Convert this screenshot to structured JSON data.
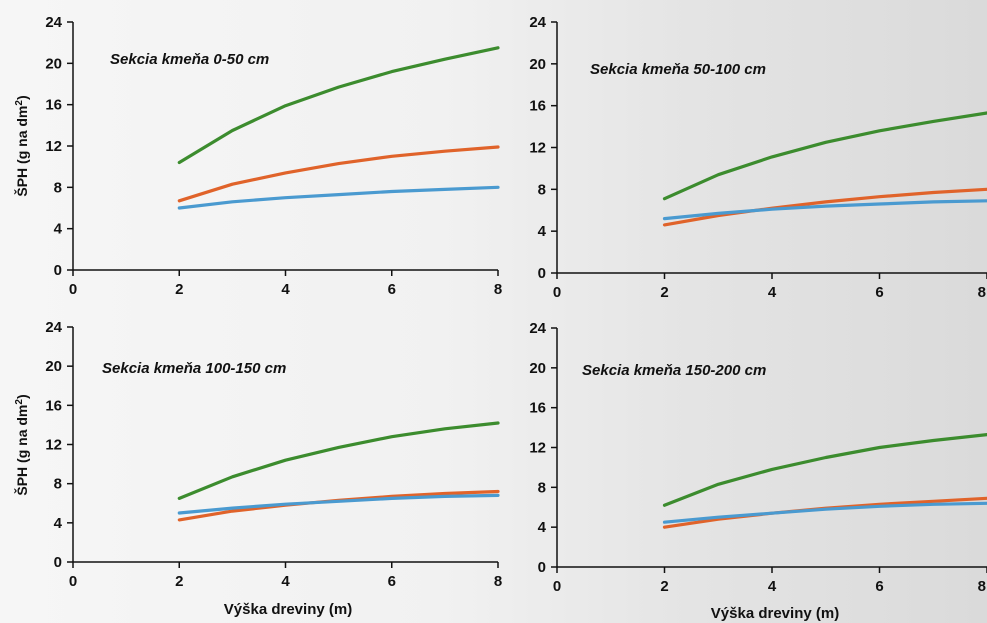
{
  "figure": {
    "xlabel": "Výška dreviny (m)",
    "ylabel_main": "ŠPH (g na dm",
    "ylabel_sup": "2",
    "ylabel_end": ")"
  },
  "colors": {
    "green": "#3c8c2e",
    "orange": "#e0632a",
    "blue": "#4a9ad0"
  },
  "chart_data": [
    {
      "type": "line",
      "title": "Sekcia kmeňa 0-50 cm",
      "xlim": [
        0,
        8
      ],
      "ylim": [
        0,
        24
      ],
      "xticks": [
        "0",
        "2",
        "4",
        "6",
        "8"
      ],
      "yticks": [
        "0",
        "4",
        "8",
        "12",
        "16",
        "20",
        "24"
      ],
      "x": [
        2,
        3,
        4,
        5,
        6,
        7,
        8
      ],
      "series": [
        {
          "color": "green",
          "values": [
            10.4,
            13.5,
            15.9,
            17.7,
            19.2,
            20.4,
            21.5
          ]
        },
        {
          "color": "orange",
          "values": [
            6.7,
            8.3,
            9.4,
            10.3,
            11.0,
            11.5,
            11.9
          ]
        },
        {
          "color": "blue",
          "values": [
            6.0,
            6.6,
            7.0,
            7.3,
            7.6,
            7.8,
            8.0
          ]
        }
      ]
    },
    {
      "type": "line",
      "title": "Sekcia kmeňa 50-100 cm",
      "xlim": [
        0,
        8
      ],
      "ylim": [
        0,
        24
      ],
      "xticks": [
        "0",
        "2",
        "4",
        "6",
        "8"
      ],
      "yticks": [
        "0",
        "4",
        "8",
        "12",
        "16",
        "20",
        "24"
      ],
      "x": [
        2,
        3,
        4,
        5,
        6,
        7,
        8
      ],
      "series": [
        {
          "color": "green",
          "values": [
            7.1,
            9.4,
            11.1,
            12.5,
            13.6,
            14.5,
            15.3
          ]
        },
        {
          "color": "orange",
          "values": [
            4.6,
            5.5,
            6.2,
            6.8,
            7.3,
            7.7,
            8.0
          ]
        },
        {
          "color": "blue",
          "values": [
            5.2,
            5.7,
            6.1,
            6.4,
            6.6,
            6.8,
            6.9
          ]
        }
      ]
    },
    {
      "type": "line",
      "title": "Sekcia kmeňa 100-150 cm",
      "xlim": [
        0,
        8
      ],
      "ylim": [
        0,
        24
      ],
      "xticks": [
        "0",
        "2",
        "4",
        "6",
        "8"
      ],
      "yticks": [
        "0",
        "4",
        "8",
        "12",
        "16",
        "20",
        "24"
      ],
      "x": [
        2,
        3,
        4,
        5,
        6,
        7,
        8
      ],
      "series": [
        {
          "color": "green",
          "values": [
            6.5,
            8.7,
            10.4,
            11.7,
            12.8,
            13.6,
            14.2
          ]
        },
        {
          "color": "orange",
          "values": [
            4.3,
            5.2,
            5.8,
            6.3,
            6.7,
            7.0,
            7.2
          ]
        },
        {
          "color": "blue",
          "values": [
            5.0,
            5.5,
            5.9,
            6.2,
            6.5,
            6.7,
            6.8
          ]
        }
      ]
    },
    {
      "type": "line",
      "title": "Sekcia kmeňa 150-200 cm",
      "xlim": [
        0,
        8
      ],
      "ylim": [
        0,
        24
      ],
      "xticks": [
        "0",
        "2",
        "4",
        "6",
        "8"
      ],
      "yticks": [
        "0",
        "4",
        "8",
        "12",
        "16",
        "20",
        "24"
      ],
      "x": [
        2,
        3,
        4,
        5,
        6,
        7,
        8
      ],
      "series": [
        {
          "color": "green",
          "values": [
            6.2,
            8.3,
            9.8,
            11.0,
            12.0,
            12.7,
            13.3
          ]
        },
        {
          "color": "orange",
          "values": [
            4.0,
            4.8,
            5.4,
            5.9,
            6.3,
            6.6,
            6.9
          ]
        },
        {
          "color": "blue",
          "values": [
            4.5,
            5.0,
            5.4,
            5.8,
            6.1,
            6.3,
            6.4
          ]
        }
      ]
    }
  ]
}
